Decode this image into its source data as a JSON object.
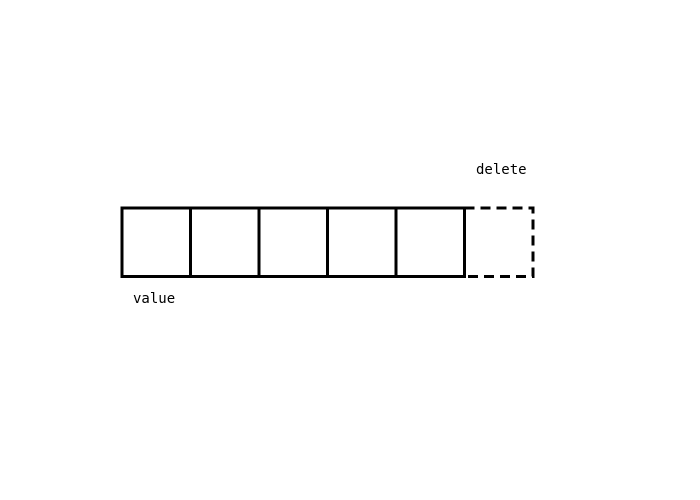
{
  "diagram": {
    "cells": [
      {
        "state": "kept"
      },
      {
        "state": "kept"
      },
      {
        "state": "kept"
      },
      {
        "state": "kept"
      },
      {
        "state": "kept"
      },
      {
        "state": "deleted"
      }
    ],
    "labels": {
      "value": "value",
      "delete": "delete"
    },
    "colors": {
      "stroke": "#000000",
      "background": "#ffffff"
    }
  }
}
